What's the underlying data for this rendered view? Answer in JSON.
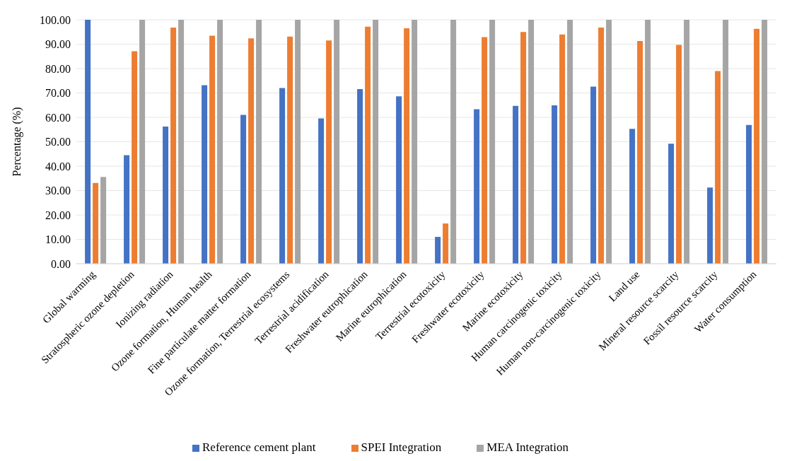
{
  "chart_data": {
    "type": "bar",
    "ylabel": "Percentage (%)",
    "categories": [
      "Global warming",
      "Stratospheric ozone depletion",
      "Ionizing radiation",
      "Ozone formation, Human health",
      "Fine particulate matter formation",
      "Ozone formation, Terrestrial ecosystems",
      "Terrestrial acidification",
      "Freshwater eutrophication",
      "Marine eutrophication",
      "Terrestrial ecotoxicity",
      "Freshwater ecotoxicity",
      "Marine ecotoxicity",
      "Human carcinogenic toxicity",
      "Human non-carcinogenic toxicity",
      "Land use",
      "Mineral resource scarcity",
      "Fossil resource scarcity",
      "Water consumption"
    ],
    "series": [
      {
        "name": "Reference cement plant",
        "color": "#4472c4",
        "values": [
          100,
          44.5,
          56.2,
          73.2,
          61.0,
          72.0,
          59.6,
          71.6,
          68.6,
          11.0,
          63.3,
          64.7,
          64.9,
          72.6,
          55.3,
          49.2,
          31.2,
          56.9
        ]
      },
      {
        "name": "SPEI Integration",
        "color": "#ed7d31",
        "values": [
          33.1,
          87.1,
          96.8,
          93.5,
          92.4,
          93.1,
          91.5,
          97.2,
          96.5,
          16.5,
          92.9,
          95.0,
          94.0,
          96.8,
          91.3,
          89.7,
          79.0,
          96.3
        ]
      },
      {
        "name": "MEA Integration",
        "color": "#a5a5a5",
        "values": [
          35.6,
          100,
          100,
          100,
          100,
          100,
          100,
          100,
          100,
          100,
          100,
          100,
          100,
          100,
          100,
          100,
          100,
          100
        ]
      }
    ],
    "ylim": [
      0,
      100
    ],
    "yticks": [
      {
        "value": 0,
        "label": "0.00"
      },
      {
        "value": 10,
        "label": "10.00"
      },
      {
        "value": 20,
        "label": "20.00"
      },
      {
        "value": 30,
        "label": "30.00"
      },
      {
        "value": 40,
        "label": "40.00"
      },
      {
        "value": 50,
        "label": "50.00"
      },
      {
        "value": 60,
        "label": "60.00"
      },
      {
        "value": 70,
        "label": "70.00"
      },
      {
        "value": 80,
        "label": "80.00"
      },
      {
        "value": 90,
        "label": "90.00"
      },
      {
        "value": 100,
        "label": "100.00"
      }
    ],
    "grid": "y",
    "legend": "bottom"
  }
}
